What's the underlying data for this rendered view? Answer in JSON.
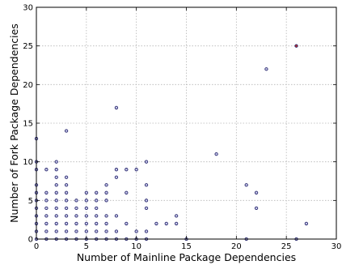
{
  "chart_data": {
    "type": "scatter",
    "title": "",
    "xlabel": "Number of Mainline Package Dependencies",
    "ylabel": "Number of Fork Package Dependencies",
    "xlim": [
      0,
      30
    ],
    "ylim": [
      0,
      30
    ],
    "xticks": [
      "0",
      "5",
      "10",
      "15",
      "20",
      "25",
      "30"
    ],
    "yticks": [
      "0",
      "5",
      "10",
      "15",
      "20",
      "25",
      "30"
    ],
    "grid": true,
    "legend": "none",
    "colors": {
      "marker_edge": "#2a2a6e",
      "marker_fill": "#c9c9ec",
      "highlight_fill": "#c03030",
      "grid": "#b5b5b5"
    },
    "series": [
      {
        "values": [
          [
            0,
            0
          ],
          [
            0,
            1
          ],
          [
            0,
            2
          ],
          [
            0,
            3
          ],
          [
            0,
            4
          ],
          [
            0,
            5
          ],
          [
            0,
            6
          ],
          [
            0,
            7
          ],
          [
            0,
            9
          ],
          [
            0,
            10
          ],
          [
            0,
            13
          ],
          [
            1,
            0
          ],
          [
            1,
            1
          ],
          [
            1,
            2
          ],
          [
            1,
            3
          ],
          [
            1,
            4
          ],
          [
            1,
            5
          ],
          [
            1,
            6
          ],
          [
            1,
            9
          ],
          [
            2,
            0
          ],
          [
            2,
            1
          ],
          [
            2,
            2
          ],
          [
            2,
            3
          ],
          [
            2,
            4
          ],
          [
            2,
            5
          ],
          [
            2,
            6
          ],
          [
            2,
            7
          ],
          [
            2,
            8
          ],
          [
            2,
            9
          ],
          [
            2,
            10
          ],
          [
            3,
            0
          ],
          [
            3,
            1
          ],
          [
            3,
            2
          ],
          [
            3,
            3
          ],
          [
            3,
            4
          ],
          [
            3,
            5
          ],
          [
            3,
            6
          ],
          [
            3,
            7
          ],
          [
            3,
            8
          ],
          [
            3,
            14
          ],
          [
            4,
            0
          ],
          [
            4,
            1
          ],
          [
            4,
            2
          ],
          [
            4,
            3
          ],
          [
            4,
            4
          ],
          [
            4,
            5
          ],
          [
            5,
            0
          ],
          [
            5,
            1
          ],
          [
            5,
            2
          ],
          [
            5,
            3
          ],
          [
            5,
            4
          ],
          [
            5,
            5
          ],
          [
            5,
            6
          ],
          [
            6,
            0
          ],
          [
            6,
            1
          ],
          [
            6,
            2
          ],
          [
            6,
            3
          ],
          [
            6,
            4
          ],
          [
            6,
            5
          ],
          [
            6,
            6
          ],
          [
            7,
            0
          ],
          [
            7,
            1
          ],
          [
            7,
            2
          ],
          [
            7,
            3
          ],
          [
            7,
            5
          ],
          [
            7,
            6
          ],
          [
            7,
            7
          ],
          [
            8,
            0
          ],
          [
            8,
            1
          ],
          [
            8,
            3
          ],
          [
            8,
            8
          ],
          [
            8,
            9
          ],
          [
            8,
            17
          ],
          [
            9,
            0
          ],
          [
            9,
            2
          ],
          [
            9,
            6
          ],
          [
            9,
            9
          ],
          [
            10,
            0
          ],
          [
            10,
            1
          ],
          [
            10,
            9
          ],
          [
            11,
            0
          ],
          [
            11,
            1
          ],
          [
            11,
            4
          ],
          [
            11,
            5
          ],
          [
            11,
            7
          ],
          [
            11,
            10
          ],
          [
            12,
            2
          ],
          [
            13,
            2
          ],
          [
            14,
            2
          ],
          [
            14,
            3
          ],
          [
            15,
            0
          ],
          [
            18,
            11
          ],
          [
            21,
            0
          ],
          [
            21,
            7
          ],
          [
            22,
            4
          ],
          [
            22,
            6
          ],
          [
            23,
            22
          ],
          [
            26,
            0
          ],
          [
            27,
            2
          ]
        ]
      },
      {
        "highlight": true,
        "values": [
          [
            26,
            25
          ]
        ]
      }
    ]
  }
}
